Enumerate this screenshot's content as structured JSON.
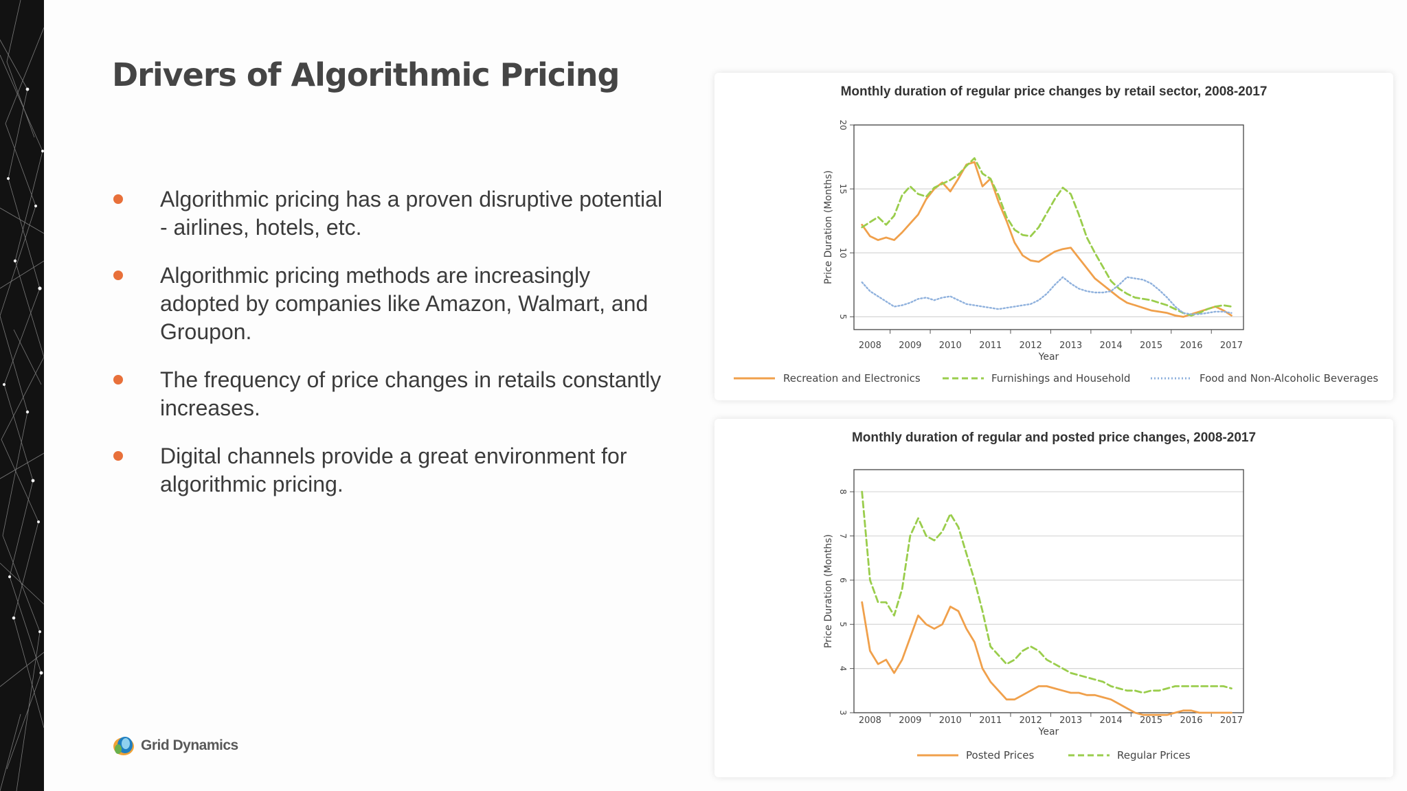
{
  "slide": {
    "title": "Drivers of Algorithmic Pricing",
    "accent_color": "#e8703a",
    "bullets": [
      {
        "text": "Algorithmic pricing has a proven disruptive potential - airlines, hotels, etc."
      },
      {
        "text": "Algorithmic pricing methods are increasingly adopted by companies like Amazon, Walmart, and Groupon."
      },
      {
        "text": "The frequency of price changes in retails constantly increases."
      },
      {
        "text": "Digital channels provide a great environment for algorithmic pricing."
      }
    ],
    "logo": {
      "name": "Grid Dynamics",
      "icon": "grid-dynamics-logo-icon"
    }
  },
  "chart_data": [
    {
      "type": "line",
      "title": "Monthly duration of regular price changes by retail sector, 2008-2017",
      "xlabel": "Year",
      "ylabel": "Price Duration (Months)",
      "xlim": [
        2007.6,
        2017.3
      ],
      "ylim": [
        4,
        20
      ],
      "x_ticks": [
        2008,
        2009,
        2010,
        2011,
        2012,
        2013,
        2014,
        2015,
        2016,
        2017
      ],
      "y_ticks": [
        5,
        10,
        15,
        20
      ],
      "grid": true,
      "legend": "bottom",
      "x": [
        2007.8,
        2008.0,
        2008.2,
        2008.4,
        2008.6,
        2008.8,
        2009.0,
        2009.2,
        2009.4,
        2009.6,
        2009.8,
        2010.0,
        2010.2,
        2010.4,
        2010.6,
        2010.8,
        2011.0,
        2011.2,
        2011.4,
        2011.6,
        2011.8,
        2012.0,
        2012.2,
        2012.4,
        2012.6,
        2012.8,
        2013.0,
        2013.2,
        2013.4,
        2013.6,
        2013.8,
        2014.0,
        2014.2,
        2014.4,
        2014.6,
        2014.8,
        2015.0,
        2015.2,
        2015.4,
        2015.6,
        2015.8,
        2016.0,
        2016.2,
        2016.4,
        2016.6,
        2016.8,
        2017.0
      ],
      "series": [
        {
          "name": "Recreation and Electronics",
          "color": "#f0a04b",
          "dash": "solid",
          "values": [
            12.2,
            11.3,
            11.0,
            11.2,
            11.0,
            11.6,
            12.3,
            13.0,
            14.2,
            15.0,
            15.5,
            14.8,
            15.8,
            16.9,
            17.1,
            15.2,
            15.8,
            14.0,
            12.5,
            10.8,
            9.8,
            9.4,
            9.3,
            9.7,
            10.1,
            10.3,
            10.4,
            9.6,
            8.8,
            8.0,
            7.5,
            7.0,
            6.5,
            6.1,
            5.9,
            5.7,
            5.5,
            5.4,
            5.3,
            5.1,
            5.0,
            5.2,
            5.4,
            5.6,
            5.8,
            5.5,
            5.1
          ]
        },
        {
          "name": "Furnishings and Household",
          "color": "#9acd4c",
          "dash": "dashed",
          "values": [
            12.0,
            12.4,
            12.8,
            12.2,
            12.9,
            14.5,
            15.2,
            14.6,
            14.4,
            15.1,
            15.4,
            15.7,
            16.1,
            16.8,
            17.4,
            16.2,
            15.8,
            14.5,
            12.8,
            11.8,
            11.4,
            11.3,
            12.0,
            13.1,
            14.2,
            15.1,
            14.6,
            13.0,
            11.2,
            10.0,
            8.9,
            7.8,
            7.2,
            6.8,
            6.5,
            6.4,
            6.3,
            6.1,
            5.9,
            5.6,
            5.3,
            5.1,
            5.3,
            5.6,
            5.8,
            5.9,
            5.8
          ]
        },
        {
          "name": "Food and Non-Alcoholic Beverages",
          "color": "#8fb1dd",
          "dash": "dotted",
          "values": [
            7.7,
            7.0,
            6.6,
            6.2,
            5.8,
            5.9,
            6.1,
            6.4,
            6.5,
            6.3,
            6.5,
            6.6,
            6.3,
            6.0,
            5.9,
            5.8,
            5.7,
            5.6,
            5.7,
            5.8,
            5.9,
            6.0,
            6.3,
            6.8,
            7.5,
            8.1,
            7.6,
            7.2,
            7.0,
            6.9,
            6.9,
            7.0,
            7.5,
            8.1,
            8.0,
            7.9,
            7.6,
            7.1,
            6.5,
            5.8,
            5.3,
            5.2,
            5.2,
            5.3,
            5.4,
            5.4,
            5.3
          ]
        }
      ]
    },
    {
      "type": "line",
      "title": "Monthly duration of regular and posted price changes, 2008-2017",
      "xlabel": "Year",
      "ylabel": "Price Duration (Months)",
      "xlim": [
        2007.6,
        2017.3
      ],
      "ylim": [
        3,
        8.5
      ],
      "x_ticks": [
        2008,
        2009,
        2010,
        2011,
        2012,
        2013,
        2014,
        2015,
        2016,
        2017
      ],
      "y_ticks": [
        3,
        4,
        5,
        6,
        7,
        8
      ],
      "grid": true,
      "legend": "bottom",
      "x": [
        2007.8,
        2008.0,
        2008.2,
        2008.4,
        2008.6,
        2008.8,
        2009.0,
        2009.2,
        2009.4,
        2009.6,
        2009.8,
        2010.0,
        2010.2,
        2010.4,
        2010.6,
        2010.8,
        2011.0,
        2011.2,
        2011.4,
        2011.6,
        2011.8,
        2012.0,
        2012.2,
        2012.4,
        2012.6,
        2012.8,
        2013.0,
        2013.2,
        2013.4,
        2013.6,
        2013.8,
        2014.0,
        2014.2,
        2014.4,
        2014.6,
        2014.8,
        2015.0,
        2015.2,
        2015.4,
        2015.6,
        2015.8,
        2016.0,
        2016.2,
        2016.4,
        2016.6,
        2016.8,
        2017.0
      ],
      "series": [
        {
          "name": "Posted Prices",
          "color": "#f0a04b",
          "dash": "solid",
          "values": [
            5.5,
            4.4,
            4.1,
            4.2,
            3.9,
            4.2,
            4.7,
            5.2,
            5.0,
            4.9,
            5.0,
            5.4,
            5.3,
            4.9,
            4.6,
            4.0,
            3.7,
            3.5,
            3.3,
            3.3,
            3.4,
            3.5,
            3.6,
            3.6,
            3.55,
            3.5,
            3.45,
            3.45,
            3.4,
            3.4,
            3.35,
            3.3,
            3.2,
            3.1,
            3.0,
            2.95,
            2.95,
            2.95,
            2.95,
            3.0,
            3.05,
            3.05,
            3.0,
            3.0,
            3.0,
            3.0,
            3.0
          ]
        },
        {
          "name": "Regular Prices",
          "color": "#9acd4c",
          "dash": "dashed",
          "values": [
            8.0,
            6.0,
            5.5,
            5.5,
            5.2,
            5.8,
            7.0,
            7.4,
            7.0,
            6.9,
            7.1,
            7.5,
            7.2,
            6.6,
            6.0,
            5.3,
            4.5,
            4.3,
            4.1,
            4.2,
            4.4,
            4.5,
            4.4,
            4.2,
            4.1,
            4.0,
            3.9,
            3.85,
            3.8,
            3.75,
            3.7,
            3.6,
            3.55,
            3.5,
            3.5,
            3.45,
            3.5,
            3.5,
            3.55,
            3.6,
            3.6,
            3.6,
            3.6,
            3.6,
            3.6,
            3.6,
            3.55
          ]
        }
      ]
    }
  ]
}
